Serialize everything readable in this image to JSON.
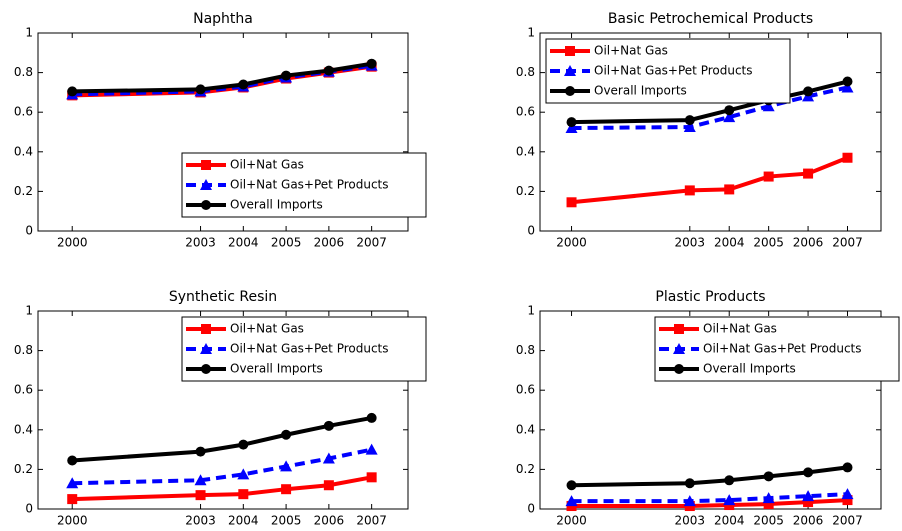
{
  "chart_data": [
    {
      "type": "line",
      "title": "Naphtha",
      "x": [
        2000,
        2003,
        2004,
        2005,
        2006,
        2007
      ],
      "xlim": [
        1999.2,
        2007.85
      ],
      "xticks": [
        2000,
        2003,
        2004,
        2005,
        2006,
        2007
      ],
      "ylim": [
        0,
        1
      ],
      "yticks": [
        0,
        0.2,
        0.4,
        0.6,
        0.8,
        1
      ],
      "legend": "lower right",
      "series": [
        {
          "name": "Oil+Nat Gas",
          "color": "#ff0000",
          "marker": "square",
          "dashed": false,
          "values": [
            0.685,
            0.7,
            0.725,
            0.77,
            0.8,
            0.83
          ]
        },
        {
          "name": "Oil+Nat Gas+Pet Products",
          "color": "#0000ff",
          "marker": "triangle",
          "dashed": true,
          "values": [
            0.69,
            0.705,
            0.73,
            0.775,
            0.805,
            0.835
          ]
        },
        {
          "name": "Overall Imports",
          "color": "#000000",
          "marker": "circle",
          "dashed": false,
          "values": [
            0.705,
            0.715,
            0.74,
            0.785,
            0.81,
            0.845
          ]
        }
      ]
    },
    {
      "type": "line",
      "title": "Basic Petrochemical Products",
      "x": [
        2000,
        2003,
        2004,
        2005,
        2006,
        2007
      ],
      "xlim": [
        1999.2,
        2007.85
      ],
      "xticks": [
        2000,
        2003,
        2004,
        2005,
        2006,
        2007
      ],
      "ylim": [
        0,
        1
      ],
      "yticks": [
        0,
        0.2,
        0.4,
        0.6,
        0.8,
        1
      ],
      "legend": "upper left",
      "series": [
        {
          "name": "Oil+Nat Gas",
          "color": "#ff0000",
          "marker": "square",
          "dashed": false,
          "values": [
            0.145,
            0.205,
            0.21,
            0.275,
            0.29,
            0.37
          ]
        },
        {
          "name": "Oil+Nat Gas+Pet Products",
          "color": "#0000ff",
          "marker": "triangle",
          "dashed": true,
          "values": [
            0.52,
            0.525,
            0.575,
            0.63,
            0.68,
            0.725
          ]
        },
        {
          "name": "Overall Imports",
          "color": "#000000",
          "marker": "circle",
          "dashed": false,
          "values": [
            0.55,
            0.56,
            0.61,
            0.66,
            0.705,
            0.755
          ]
        }
      ]
    },
    {
      "type": "line",
      "title": "Synthetic Resin",
      "x": [
        2000,
        2003,
        2004,
        2005,
        2006,
        2007
      ],
      "xlim": [
        1999.2,
        2007.85
      ],
      "xticks": [
        2000,
        2003,
        2004,
        2005,
        2006,
        2007
      ],
      "ylim": [
        0,
        1
      ],
      "yticks": [
        0,
        0.2,
        0.4,
        0.6,
        0.8,
        1
      ],
      "legend": "upper right",
      "series": [
        {
          "name": "Oil+Nat Gas",
          "color": "#ff0000",
          "marker": "square",
          "dashed": false,
          "values": [
            0.05,
            0.07,
            0.075,
            0.1,
            0.12,
            0.16
          ]
        },
        {
          "name": "Oil+Nat Gas+Pet Products",
          "color": "#0000ff",
          "marker": "triangle",
          "dashed": true,
          "values": [
            0.13,
            0.145,
            0.175,
            0.215,
            0.255,
            0.3
          ]
        },
        {
          "name": "Overall Imports",
          "color": "#000000",
          "marker": "circle",
          "dashed": false,
          "values": [
            0.245,
            0.29,
            0.325,
            0.375,
            0.42,
            0.46
          ]
        }
      ]
    },
    {
      "type": "line",
      "title": "Plastic Products",
      "x": [
        2000,
        2003,
        2004,
        2005,
        2006,
        2007
      ],
      "xlim": [
        1999.2,
        2007.85
      ],
      "xticks": [
        2000,
        2003,
        2004,
        2005,
        2006,
        2007
      ],
      "ylim": [
        0,
        1
      ],
      "yticks": [
        0,
        0.2,
        0.4,
        0.6,
        0.8,
        1
      ],
      "legend": "upper right",
      "series": [
        {
          "name": "Oil+Nat Gas",
          "color": "#ff0000",
          "marker": "square",
          "dashed": false,
          "values": [
            0.015,
            0.015,
            0.02,
            0.025,
            0.035,
            0.045
          ]
        },
        {
          "name": "Oil+Nat Gas+Pet Products",
          "color": "#0000ff",
          "marker": "triangle",
          "dashed": true,
          "values": [
            0.04,
            0.04,
            0.045,
            0.055,
            0.065,
            0.075
          ]
        },
        {
          "name": "Overall Imports",
          "color": "#000000",
          "marker": "circle",
          "dashed": false,
          "values": [
            0.12,
            0.13,
            0.145,
            0.165,
            0.185,
            0.21
          ]
        }
      ]
    }
  ]
}
